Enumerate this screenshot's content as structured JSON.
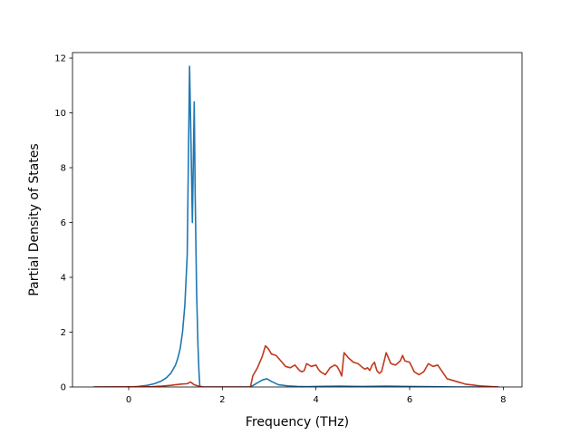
{
  "chart_data": {
    "type": "line",
    "title": "",
    "xlabel": "Frequency (THz)",
    "ylabel": "Partial Density of States",
    "xlim": [
      -1.2,
      8.4
    ],
    "ylim": [
      0,
      12.2
    ],
    "xticks": [
      0,
      2,
      4,
      6,
      8
    ],
    "yticks": [
      0,
      2,
      4,
      6,
      8,
      10,
      12
    ],
    "xtick_labels": [
      "0",
      "2",
      "4",
      "6",
      "8"
    ],
    "ytick_labels": [
      "0",
      "2",
      "4",
      "6",
      "8",
      "10",
      "12"
    ],
    "grid": false,
    "legend": "none",
    "series": [
      {
        "color": "#1f77b4",
        "x": [
          -0.75,
          0.0,
          0.2,
          0.4,
          0.55,
          0.7,
          0.8,
          0.9,
          1.0,
          1.05,
          1.1,
          1.15,
          1.2,
          1.25,
          1.3,
          1.33,
          1.36,
          1.4,
          1.42,
          1.45,
          1.48,
          1.5,
          1.52,
          2.6,
          2.75,
          2.85,
          2.95,
          3.05,
          3.2,
          3.4,
          3.6,
          3.8,
          4.0,
          4.5,
          5.0,
          5.5,
          6.0,
          6.5,
          7.0,
          7.5,
          7.9
        ],
        "values": [
          0.0,
          0.0,
          0.02,
          0.06,
          0.12,
          0.22,
          0.33,
          0.5,
          0.8,
          1.05,
          1.4,
          2.0,
          3.0,
          4.8,
          11.7,
          9.0,
          6.0,
          10.4,
          7.0,
          3.5,
          1.5,
          0.6,
          0.0,
          0.0,
          0.15,
          0.25,
          0.3,
          0.2,
          0.08,
          0.04,
          0.02,
          0.01,
          0.02,
          0.03,
          0.02,
          0.03,
          0.02,
          0.01,
          0.0,
          0.0,
          0.0
        ]
      },
      {
        "color": "#c0391e",
        "x": [
          -0.75,
          0.5,
          0.7,
          0.9,
          1.1,
          1.25,
          1.32,
          1.4,
          1.5,
          1.6,
          2.0,
          2.6,
          2.65,
          2.75,
          2.85,
          2.92,
          2.98,
          3.05,
          3.15,
          3.25,
          3.35,
          3.45,
          3.55,
          3.65,
          3.7,
          3.75,
          3.8,
          3.9,
          4.0,
          4.05,
          4.1,
          4.2,
          4.3,
          4.4,
          4.45,
          4.5,
          4.55,
          4.6,
          4.7,
          4.8,
          4.9,
          5.0,
          5.05,
          5.1,
          5.15,
          5.2,
          5.25,
          5.3,
          5.35,
          5.4,
          5.5,
          5.6,
          5.7,
          5.8,
          5.85,
          5.9,
          6.0,
          6.1,
          6.2,
          6.3,
          6.4,
          6.5,
          6.6,
          6.8,
          7.0,
          7.2,
          7.5,
          7.9
        ],
        "values": [
          0.0,
          0.01,
          0.03,
          0.06,
          0.1,
          0.12,
          0.18,
          0.08,
          0.03,
          0.0,
          0.0,
          0.0,
          0.4,
          0.7,
          1.1,
          1.5,
          1.4,
          1.2,
          1.15,
          0.95,
          0.75,
          0.7,
          0.8,
          0.6,
          0.55,
          0.6,
          0.85,
          0.75,
          0.8,
          0.65,
          0.55,
          0.45,
          0.7,
          0.8,
          0.75,
          0.6,
          0.4,
          1.25,
          1.05,
          0.9,
          0.85,
          0.7,
          0.65,
          0.7,
          0.6,
          0.8,
          0.9,
          0.6,
          0.5,
          0.55,
          1.25,
          0.85,
          0.8,
          0.95,
          1.15,
          0.95,
          0.9,
          0.55,
          0.45,
          0.55,
          0.85,
          0.75,
          0.8,
          0.3,
          0.2,
          0.1,
          0.04,
          0.0
        ]
      }
    ]
  }
}
